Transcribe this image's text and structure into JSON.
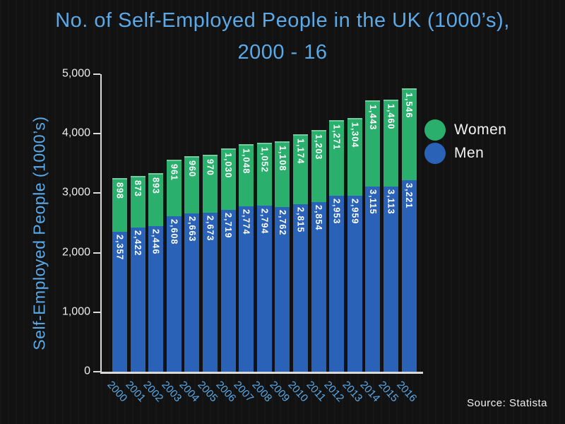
{
  "title": {
    "line1": "No. of Self-Employed People in the UK (1000’s),",
    "line2": "2000 - 16"
  },
  "y_axis_title": "Self-Employed People (1000’s)",
  "source": "Source: Statista",
  "legend": {
    "items": [
      {
        "label": "Women",
        "color": "#2aaf6d"
      },
      {
        "label": "Men",
        "color": "#2a62b8"
      }
    ]
  },
  "colors": {
    "background": "#121212",
    "title_blue": "#5aa9e8",
    "axis_line": "#d9d9d9",
    "tick_text": "#ececec",
    "bar_green": "#2aaf6d",
    "bar_blue": "#2a62b8",
    "value_label": "#ffffff"
  },
  "chart_data": {
    "type": "bar",
    "stacked": true,
    "title": "No. of Self-Employed People in the UK (1000's), 2000 - 16",
    "xlabel": "",
    "ylabel": "Self-Employed People (1000's)",
    "categories": [
      "2000",
      "2001",
      "2002",
      "2003",
      "2004",
      "2005",
      "2006",
      "2007",
      "2008",
      "2009",
      "2010",
      "2011",
      "2012",
      "2013",
      "2014",
      "2015",
      "2016"
    ],
    "series": [
      {
        "name": "Men",
        "color": "#2a62b8",
        "values": [
          2357,
          2422,
          2446,
          2608,
          2663,
          2673,
          2719,
          2774,
          2794,
          2762,
          2815,
          2854,
          2953,
          2959,
          3115,
          3113,
          3221
        ]
      },
      {
        "name": "Women",
        "color": "#2aaf6d",
        "values": [
          898,
          873,
          893,
          961,
          960,
          970,
          1030,
          1048,
          1052,
          1108,
          1174,
          1203,
          1271,
          1304,
          1443,
          1460,
          1546
        ]
      }
    ],
    "ylim": [
      0,
      5000
    ],
    "yticks": [
      0,
      1000,
      2000,
      3000,
      4000,
      5000
    ],
    "ytick_labels": [
      "0",
      "1,000",
      "2,000",
      "3,000",
      "4,000",
      "5,000"
    ],
    "legend_position": "right",
    "grid": false
  }
}
